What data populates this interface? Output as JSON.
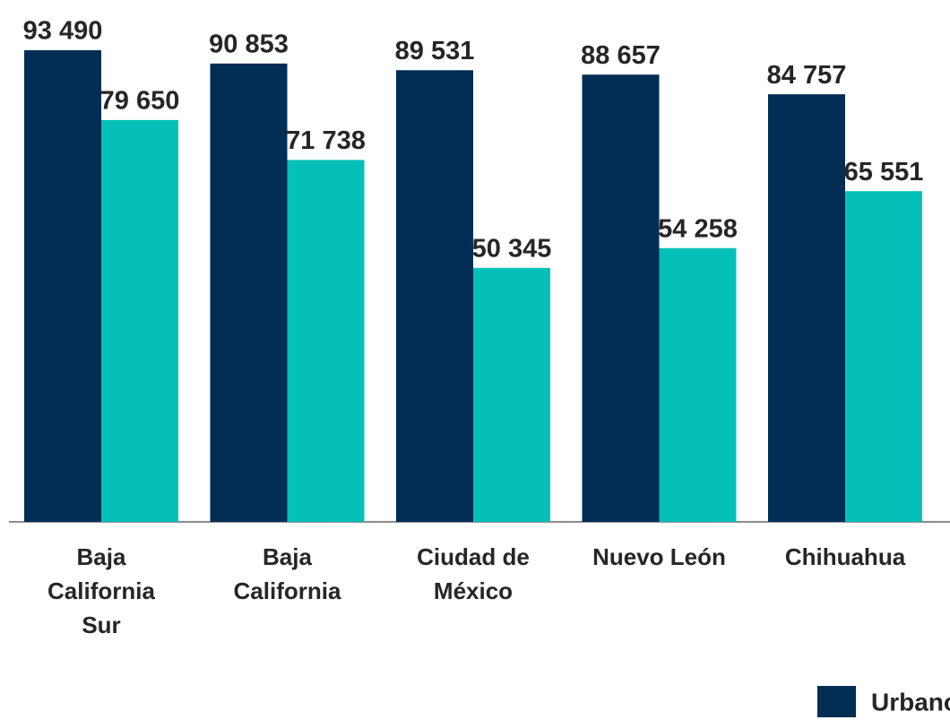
{
  "chart_data": {
    "type": "bar",
    "categories": [
      "Baja California Sur",
      "Baja California",
      "Ciudad de México",
      "Nuevo León",
      "Chihuahua"
    ],
    "series": [
      {
        "name": "Urbano",
        "color": "#022d54",
        "values": [
          93490,
          90853,
          89531,
          88657,
          84757
        ],
        "value_labels": [
          "93 490",
          "90 853",
          "89 531",
          "88 657",
          "84 757"
        ]
      },
      {
        "color": "#05c0b9",
        "values": [
          79650,
          71738,
          50345,
          54258,
          65551
        ],
        "value_labels": [
          "79 650",
          "71 738",
          "50 345",
          "54 258",
          "65 551"
        ]
      }
    ],
    "ylim": [
      0,
      100000
    ]
  }
}
